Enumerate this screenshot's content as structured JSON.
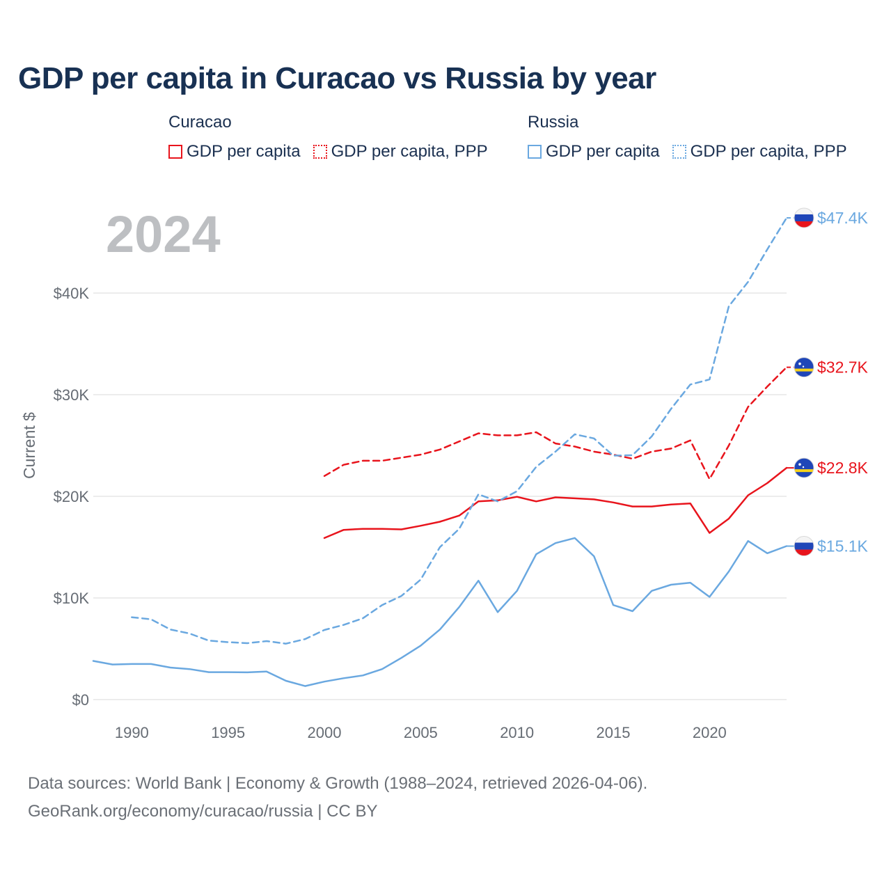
{
  "title": "GDP per capita in Curacao vs Russia by year",
  "legend": {
    "groups": [
      {
        "name": "Curacao",
        "color": "#e8141c",
        "items": [
          {
            "label": "GDP per capita",
            "style": "solid"
          },
          {
            "label": "GDP per capita, PPP",
            "style": "dotted"
          }
        ]
      },
      {
        "name": "Russia",
        "color": "#6aa8e0",
        "items": [
          {
            "label": "GDP per capita",
            "style": "solid"
          },
          {
            "label": "GDP per capita, PPP",
            "style": "dotted"
          }
        ]
      }
    ]
  },
  "footer": {
    "line1": "Data sources: World Bank | Economy & Growth (1988–2024, retrieved 2026-04-06).",
    "line2": "GeoRank.org/economy/curacao/russia | CC BY"
  },
  "chart_data": {
    "type": "line",
    "title": "GDP per capita in Curacao vs Russia by year",
    "year_label": "2024",
    "xlabel": "",
    "ylabel": "Current $",
    "xlim": [
      1988,
      2024
    ],
    "ylim": [
      0,
      50000
    ],
    "x_ticks": [
      1990,
      1995,
      2000,
      2005,
      2010,
      2015,
      2020
    ],
    "y_ticks": [
      {
        "value": 0,
        "label": "$0"
      },
      {
        "value": 10000,
        "label": "$10K"
      },
      {
        "value": 20000,
        "label": "$20K"
      },
      {
        "value": 30000,
        "label": "$30K"
      },
      {
        "value": 40000,
        "label": "$40K"
      }
    ],
    "grid": true,
    "series": [
      {
        "name": "Curacao GDP per capita",
        "color": "#e8141c",
        "dash": "solid",
        "flag": "curacao",
        "end_label": "$22.8K",
        "x": [
          2000,
          2001,
          2002,
          2003,
          2004,
          2005,
          2006,
          2007,
          2008,
          2009,
          2010,
          2011,
          2012,
          2013,
          2014,
          2015,
          2016,
          2017,
          2018,
          2019,
          2020,
          2021,
          2022,
          2023,
          2024
        ],
        "values": [
          15900,
          16700,
          16800,
          16800,
          16750,
          17100,
          17500,
          18100,
          19500,
          19600,
          19950,
          19500,
          19900,
          19800,
          19700,
          19400,
          19000,
          19000,
          19200,
          19300,
          16400,
          17800,
          20100,
          21300,
          22800
        ]
      },
      {
        "name": "Curacao GDP per capita, PPP",
        "color": "#e8141c",
        "dash": "dashed",
        "flag": "curacao",
        "end_label": "$32.7K",
        "x": [
          2000,
          2001,
          2002,
          2003,
          2004,
          2005,
          2006,
          2007,
          2008,
          2009,
          2010,
          2011,
          2012,
          2013,
          2014,
          2015,
          2016,
          2017,
          2018,
          2019,
          2020,
          2021,
          2022,
          2023,
          2024
        ],
        "values": [
          22000,
          23100,
          23500,
          23500,
          23800,
          24100,
          24600,
          25400,
          26200,
          26000,
          26000,
          26300,
          25200,
          24900,
          24400,
          24100,
          23700,
          24400,
          24700,
          25500,
          21700,
          25000,
          28800,
          30800,
          32700
        ]
      },
      {
        "name": "Russia GDP per capita",
        "color": "#6aa8e0",
        "dash": "solid",
        "flag": "russia",
        "end_label": "$15.1K",
        "x": [
          1988,
          1989,
          1990,
          1991,
          1992,
          1993,
          1994,
          1995,
          1996,
          1997,
          1998,
          1999,
          2000,
          2001,
          2002,
          2003,
          2004,
          2005,
          2006,
          2007,
          2008,
          2009,
          2010,
          2011,
          2012,
          2013,
          2014,
          2015,
          2016,
          2017,
          2018,
          2019,
          2020,
          2021,
          2022,
          2023,
          2024
        ],
        "values": [
          3800,
          3450,
          3500,
          3500,
          3150,
          3000,
          2700,
          2700,
          2680,
          2760,
          1850,
          1330,
          1770,
          2100,
          2380,
          3000,
          4100,
          5300,
          6900,
          9100,
          11700,
          8600,
          10700,
          14300,
          15400,
          15900,
          14100,
          9300,
          8700,
          10700,
          11300,
          11500,
          10100,
          12600,
          15600,
          14400,
          15100
        ]
      },
      {
        "name": "Russia GDP per capita, PPP",
        "color": "#6aa8e0",
        "dash": "dashed",
        "flag": "russia",
        "end_label": "$47.4K",
        "x": [
          1990,
          1991,
          1992,
          1993,
          1994,
          1995,
          1996,
          1997,
          1998,
          1999,
          2000,
          2001,
          2002,
          2003,
          2004,
          2005,
          2006,
          2007,
          2008,
          2009,
          2010,
          2011,
          2012,
          2013,
          2014,
          2015,
          2016,
          2017,
          2018,
          2019,
          2020,
          2021,
          2022,
          2023,
          2024
        ],
        "values": [
          8100,
          7900,
          6900,
          6500,
          5800,
          5650,
          5550,
          5750,
          5500,
          5950,
          6850,
          7350,
          8000,
          9300,
          10200,
          11800,
          15000,
          16800,
          20200,
          19500,
          20500,
          22900,
          24400,
          26100,
          25700,
          24000,
          24050,
          25900,
          28600,
          31000,
          31500,
          38700,
          41100,
          44300,
          47400
        ]
      }
    ]
  }
}
